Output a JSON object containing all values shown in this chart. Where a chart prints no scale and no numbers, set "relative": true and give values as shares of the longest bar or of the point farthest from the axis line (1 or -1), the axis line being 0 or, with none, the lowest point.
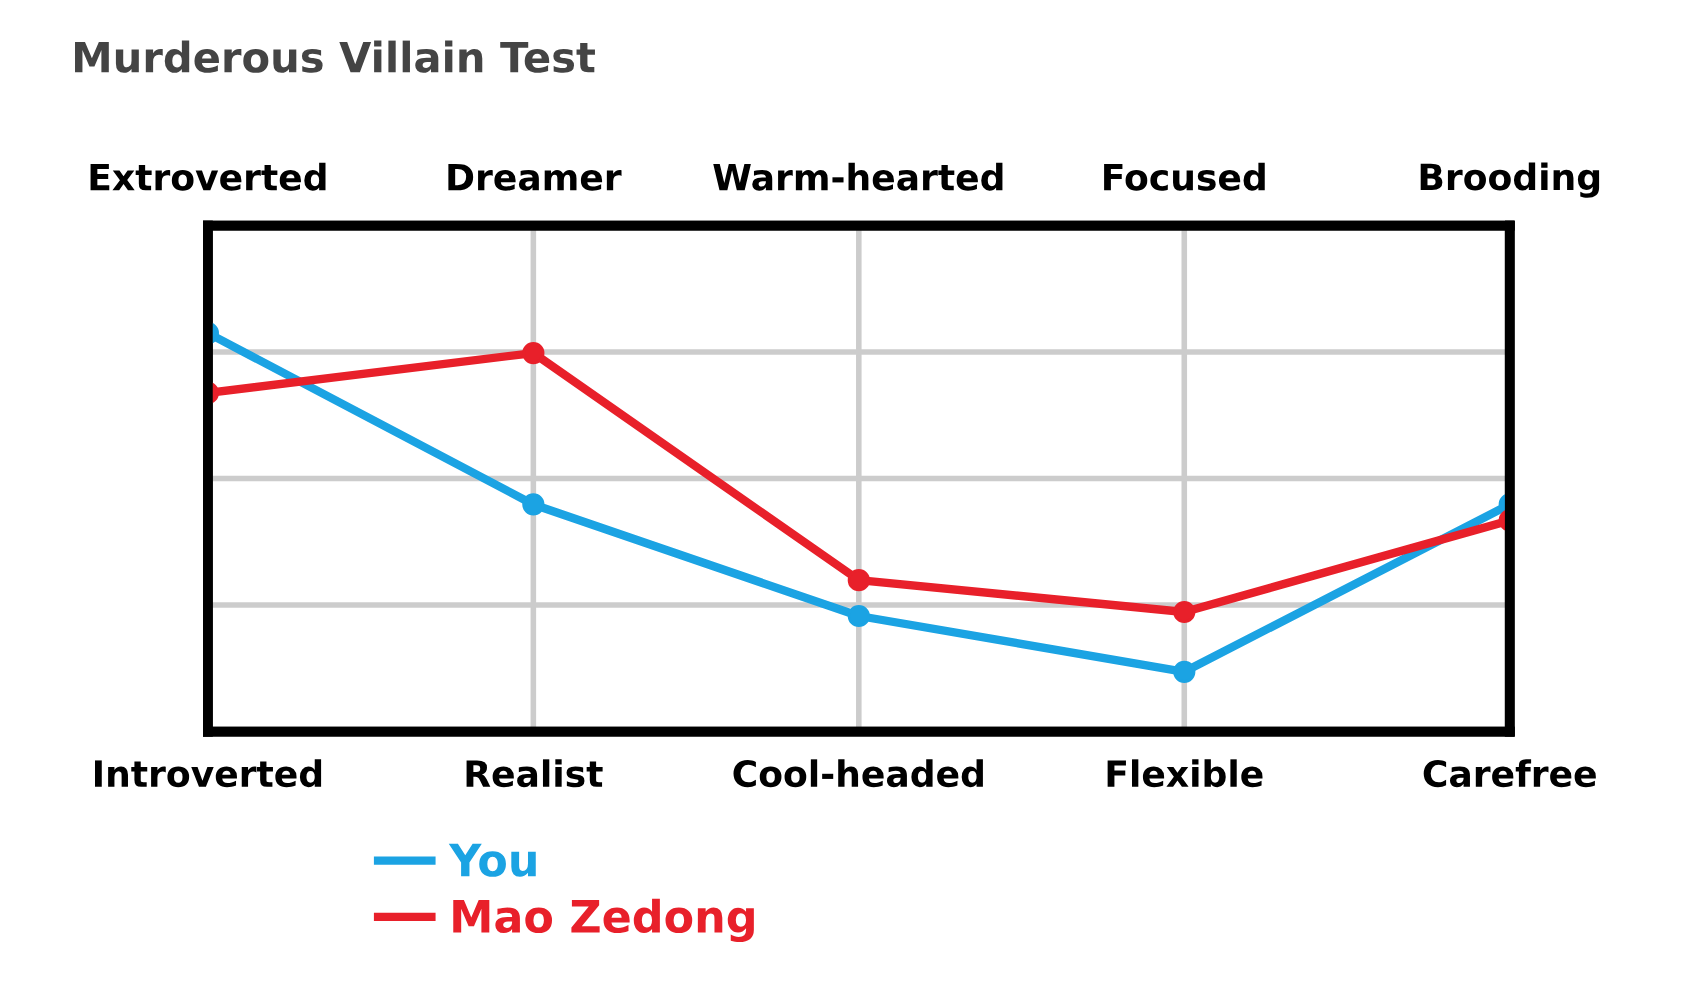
{
  "chart_data": {
    "type": "line",
    "title": "Murderous Villain Test",
    "relative": true,
    "categories": [
      "Introverted",
      "Realist",
      "Cool-headed",
      "Flexible",
      "Carefree"
    ],
    "annotations": [
      "Extroverted",
      "Dreamer",
      "Warm-hearted",
      "Focused",
      "Brooding"
    ],
    "series": [
      {
        "name": "You",
        "color": "#1ba3e3",
        "values": [
          1,
          0.57,
          0.29,
          0.15,
          0.57
        ]
      },
      {
        "name": "Mao Zedong",
        "color": "#e8202a",
        "values": [
          0.85,
          0.95,
          0.38,
          0.3,
          0.53
        ]
      }
    ],
    "grid": true,
    "legend": "bottom left",
    "marker": "circle",
    "line_style": "solid"
  }
}
